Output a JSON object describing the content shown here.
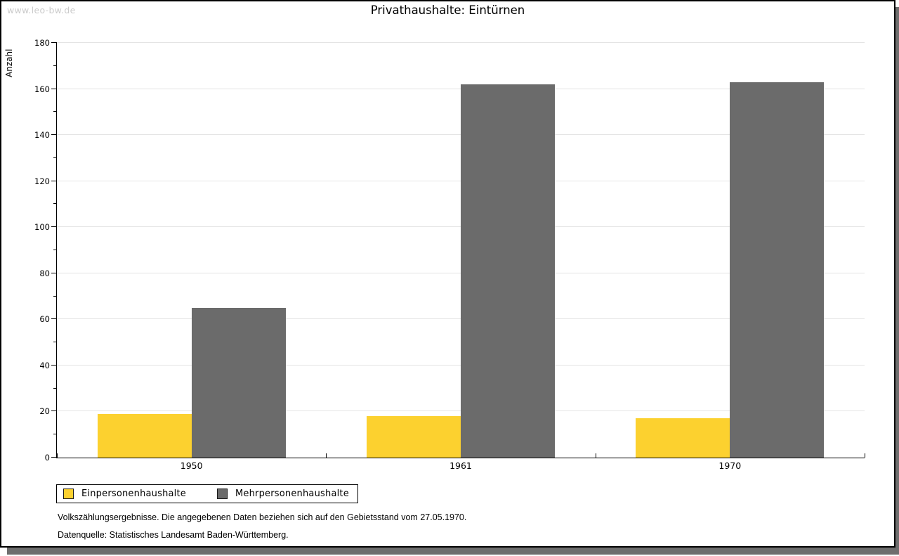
{
  "watermark": "www.leo-bw.de",
  "title": "Privathaushalte: Eintürnen",
  "chart_data": {
    "type": "bar",
    "title": "Privathaushalte: Eintürnen",
    "categories": [
      "1950",
      "1961",
      "1970"
    ],
    "series": [
      {
        "name": "Einpersonenhaushalte",
        "color": "#fcd12f",
        "values": [
          19,
          18,
          17
        ]
      },
      {
        "name": "Mehrpersonenhaushalte",
        "color": "#6b6b6b",
        "values": [
          65,
          162,
          163
        ]
      }
    ],
    "xlabel": "",
    "ylabel": "Anzahl",
    "ylim": [
      0,
      180
    ],
    "ytick_step": 20,
    "ytick_minor_step": 10,
    "grid": true,
    "legend_position": "bottom-left"
  },
  "footnotes": {
    "line1": "Volkszählungsergebnisse. Die angegebenen Daten beziehen sich auf den Gebietsstand vom 27.05.1970.",
    "line2": "Datenquelle: Statistisches Landesamt Baden-Württemberg."
  }
}
